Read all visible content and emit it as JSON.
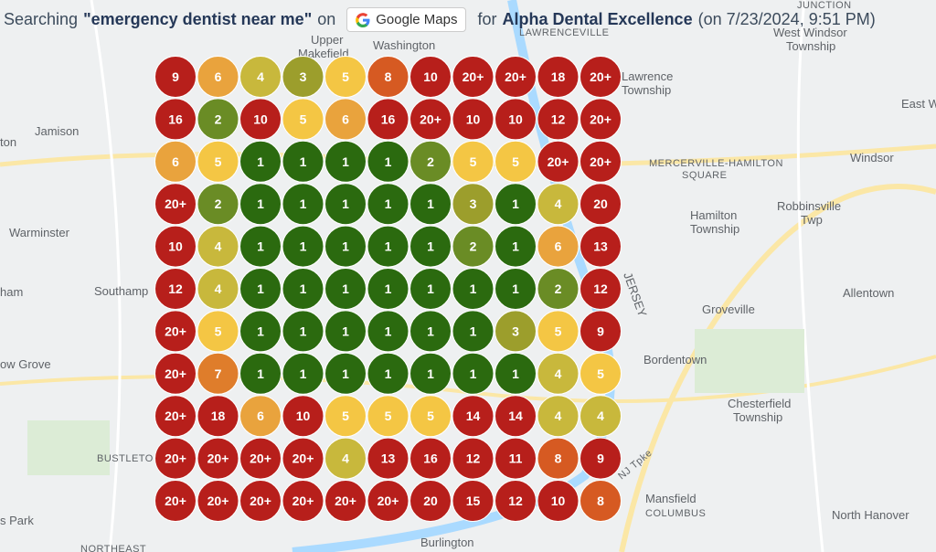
{
  "header": {
    "prefix": "Searching",
    "keyword": "\"emergency dentist near me\"",
    "on": "on",
    "platform": "Google Maps",
    "for": "for",
    "business": "Alpha Dental Excellence",
    "date": "(on 7/23/2024, 9:51 PM)"
  },
  "grid": [
    [
      "9",
      "6",
      "4",
      "3",
      "5",
      "8",
      "10",
      "20+",
      "20+",
      "18",
      "20+"
    ],
    [
      "16",
      "2",
      "10",
      "5",
      "6",
      "16",
      "20+",
      "10",
      "10",
      "12",
      "20+"
    ],
    [
      "6",
      "5",
      "1",
      "1",
      "1",
      "1",
      "2",
      "5",
      "5",
      "20+",
      "20+"
    ],
    [
      "20+",
      "2",
      "1",
      "1",
      "1",
      "1",
      "1",
      "3",
      "1",
      "4",
      "20"
    ],
    [
      "10",
      "4",
      "1",
      "1",
      "1",
      "1",
      "1",
      "2",
      "1",
      "6",
      "13"
    ],
    [
      "12",
      "4",
      "1",
      "1",
      "1",
      "1",
      "1",
      "1",
      "1",
      "2",
      "12"
    ],
    [
      "20+",
      "5",
      "1",
      "1",
      "1",
      "1",
      "1",
      "1",
      "3",
      "5",
      "9"
    ],
    [
      "20+",
      "7",
      "1",
      "1",
      "1",
      "1",
      "1",
      "1",
      "1",
      "4",
      "5"
    ],
    [
      "20+",
      "18",
      "6",
      "10",
      "5",
      "5",
      "5",
      "14",
      "14",
      "4",
      "4"
    ],
    [
      "20+",
      "20+",
      "20+",
      "20+",
      "4",
      "13",
      "16",
      "12",
      "11",
      "8",
      "9"
    ],
    [
      "20+",
      "20+",
      "20+",
      "20+",
      "20+",
      "20+",
      "20",
      "15",
      "12",
      "10",
      "8"
    ]
  ],
  "map_labels": [
    "Upper",
    "Makefield",
    "Washington",
    "LAWRENCEVILLE",
    "JUNCTION",
    "West Windsor",
    "Township",
    "Lawrence",
    "Township",
    "East W",
    "Jamison",
    "ton",
    "Windsor",
    "MERCERVILLE-HAMILTON",
    "SQUARE",
    "Hamilton",
    "Township",
    "Robbinsville",
    "Twp",
    "Warminster",
    "Southamp",
    "ham",
    "Allentown",
    "Groveville",
    "ow Grove",
    "Bordentown",
    "Chesterfield",
    "Township",
    "BUSTLETO",
    "Mansfield",
    "COLUMBUS",
    "North Hanover",
    "s Park",
    "Burlington",
    "NORTHEAST",
    "JERSEY",
    "NJ Tpke"
  ]
}
